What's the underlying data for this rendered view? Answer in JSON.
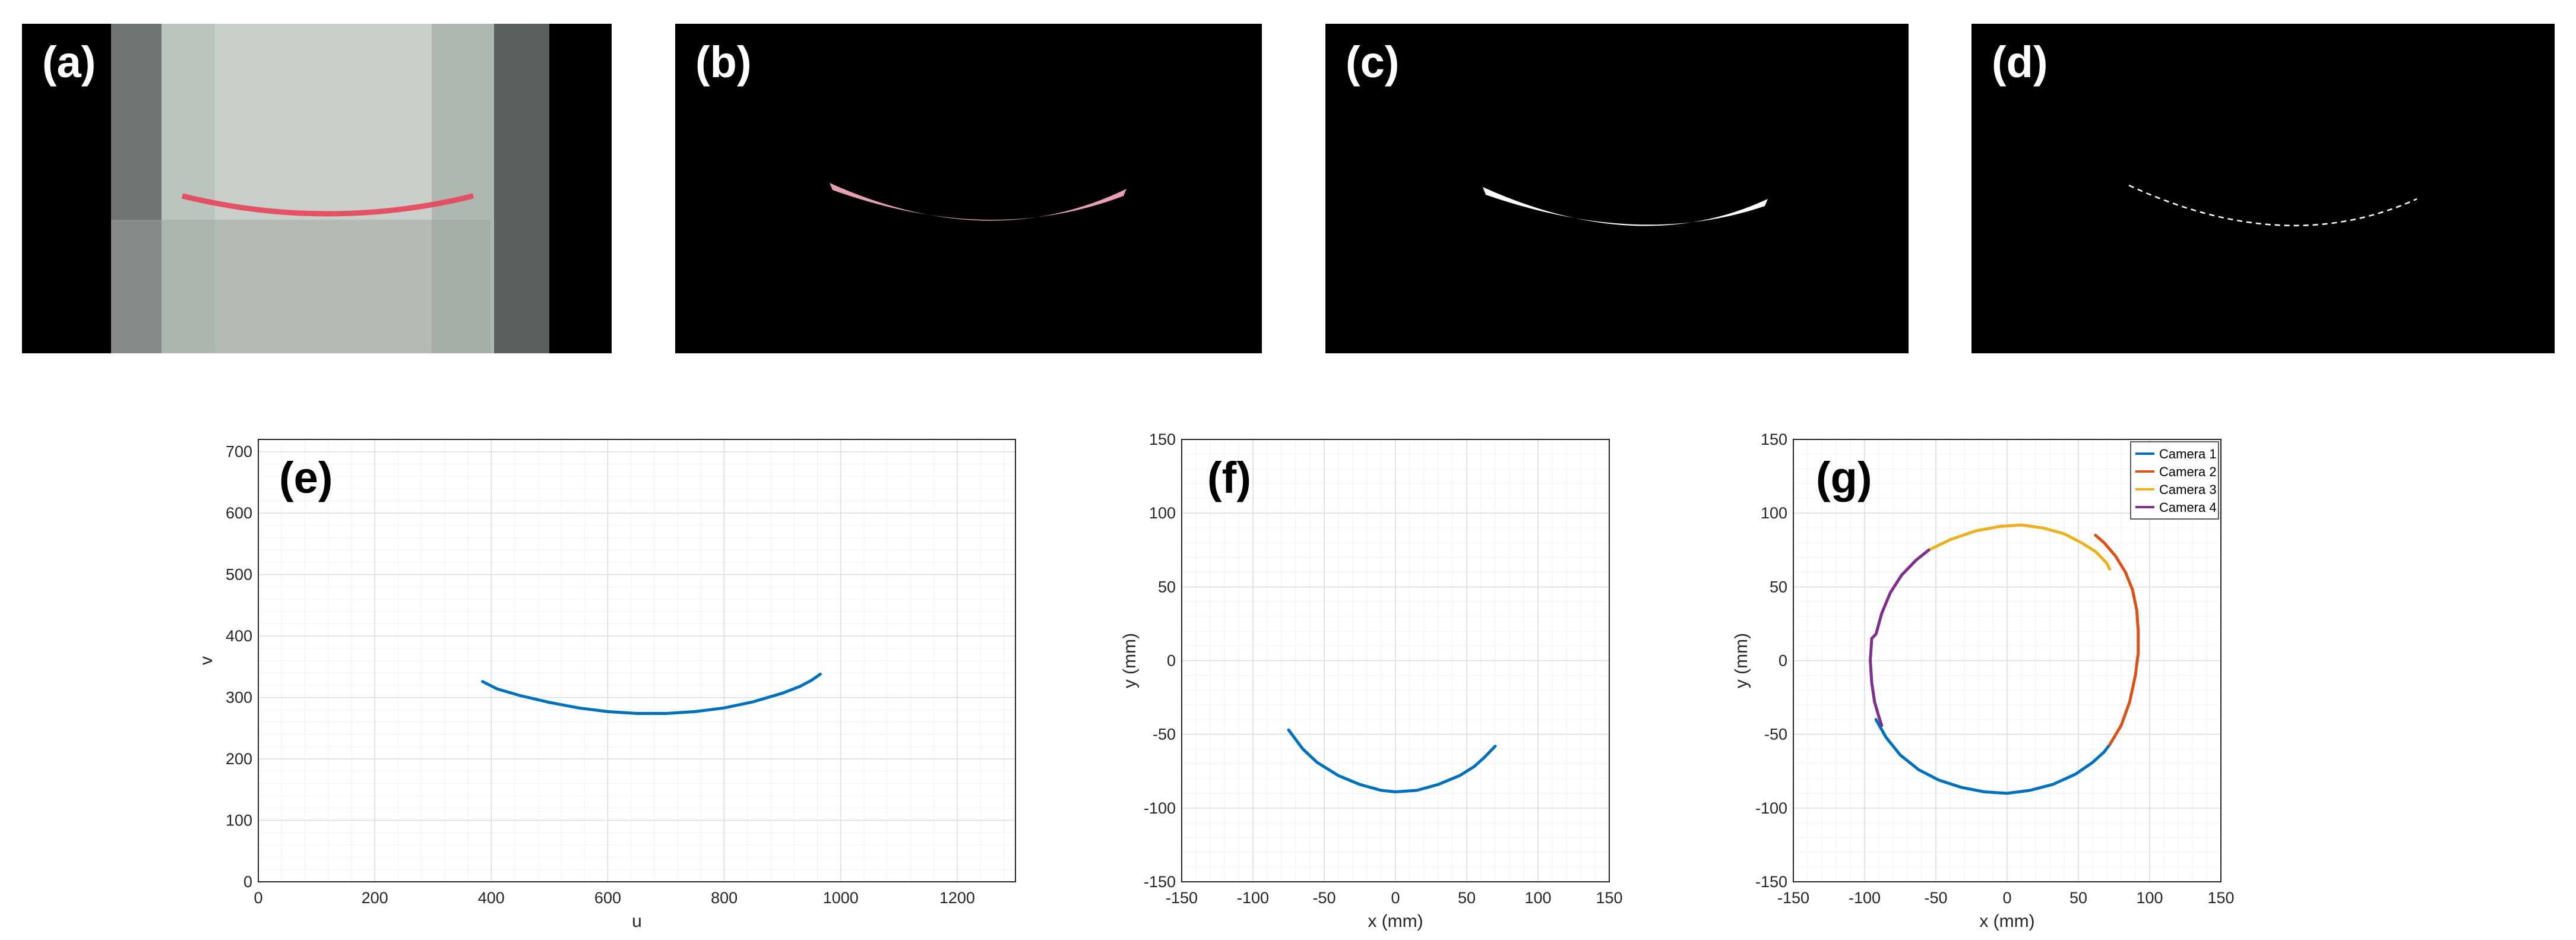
{
  "panels": {
    "a": {
      "label": "(a)"
    },
    "b": {
      "label": "(b)"
    },
    "c": {
      "label": "(c)"
    },
    "d": {
      "label": "(d)"
    }
  },
  "colors": {
    "camera1": "#0072BD",
    "camera2": "#D95319",
    "camera3": "#EDB120",
    "camera4": "#7E2F8E",
    "laser_line": "#e8425a",
    "mask_pink": "#e8a0b0"
  },
  "chart_data": [
    {
      "id": "e",
      "type": "line",
      "panel_label": "(e)",
      "xlabel": "u",
      "ylabel": "v",
      "xlim": [
        0,
        1300
      ],
      "ylim": [
        0,
        720
      ],
      "xticks": [
        0,
        200,
        400,
        600,
        800,
        1000,
        1200
      ],
      "yticks": [
        0,
        100,
        200,
        300,
        400,
        500,
        600,
        700
      ],
      "grid": true,
      "series": [
        {
          "color": "#0072BD",
          "x": [
            385,
            410,
            450,
            500,
            550,
            600,
            650,
            700,
            750,
            800,
            850,
            900,
            930,
            950,
            965
          ],
          "y": [
            326,
            314,
            303,
            292,
            283,
            277,
            274,
            274,
            277,
            283,
            293,
            307,
            318,
            328,
            338
          ]
        }
      ]
    },
    {
      "id": "f",
      "type": "line",
      "panel_label": "(f)",
      "xlabel": "x (mm)",
      "ylabel": "y (mm)",
      "xlim": [
        -150,
        150
      ],
      "ylim": [
        -150,
        150
      ],
      "xticks": [
        -150,
        -100,
        -50,
        0,
        50,
        100,
        150
      ],
      "yticks": [
        -150,
        -100,
        -50,
        0,
        50,
        100,
        150
      ],
      "grid": true,
      "series": [
        {
          "color": "#0072BD",
          "x": [
            -75,
            -65,
            -55,
            -40,
            -25,
            -10,
            0,
            15,
            30,
            45,
            55,
            62,
            70
          ],
          "y": [
            -47,
            -60,
            -69,
            -78,
            -84,
            -88,
            -89,
            -88,
            -84,
            -78,
            -72,
            -66,
            -58
          ]
        }
      ]
    },
    {
      "id": "g",
      "type": "line",
      "panel_label": "(g)",
      "xlabel": "x (mm)",
      "ylabel": "y (mm)",
      "xlim": [
        -150,
        150
      ],
      "ylim": [
        -150,
        150
      ],
      "xticks": [
        -150,
        -100,
        -50,
        0,
        50,
        100,
        150
      ],
      "yticks": [
        -150,
        -100,
        -50,
        0,
        50,
        100,
        150
      ],
      "grid": true,
      "legend": "top-right",
      "series": [
        {
          "name": "Camera 1",
          "color": "#0072BD",
          "x": [
            -92,
            -85,
            -75,
            -62,
            -48,
            -32,
            -16,
            0,
            16,
            32,
            48,
            60,
            68,
            72
          ],
          "y": [
            -40,
            -52,
            -64,
            -74,
            -81,
            -86,
            -89,
            -90,
            -88,
            -84,
            -77,
            -69,
            -62,
            -57
          ]
        },
        {
          "name": "Camera 2",
          "color": "#D95319",
          "x": [
            72,
            80,
            86,
            90,
            92,
            92,
            91,
            88,
            83,
            76,
            68,
            62
          ],
          "y": [
            -57,
            -44,
            -28,
            -10,
            5,
            20,
            34,
            48,
            60,
            71,
            80,
            85
          ]
        },
        {
          "name": "Camera 3",
          "color": "#EDB120",
          "x": [
            -55,
            -40,
            -22,
            -5,
            10,
            25,
            40,
            52,
            62,
            70,
            72
          ],
          "y": [
            75,
            82,
            88,
            91,
            92,
            90,
            86,
            80,
            74,
            66,
            62
          ]
        },
        {
          "name": "Camera 4",
          "color": "#7E2F8E",
          "x": [
            -55,
            -64,
            -74,
            -82,
            -88,
            -92,
            -95,
            -96,
            -95,
            -93,
            -90,
            -88
          ],
          "y": [
            75,
            68,
            58,
            46,
            32,
            18,
            15,
            0,
            -15,
            -28,
            -38,
            -44
          ]
        }
      ]
    }
  ]
}
